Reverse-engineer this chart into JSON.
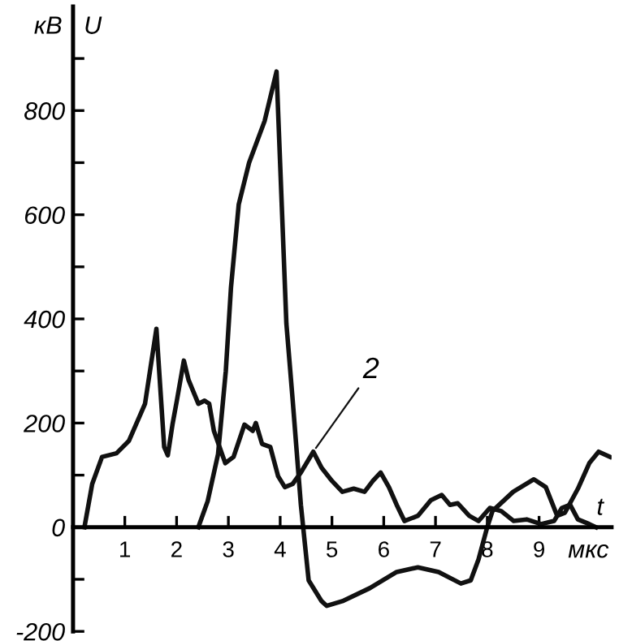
{
  "chart_data": {
    "type": "line",
    "xlabel": "t",
    "ylabel": "U",
    "annotations": [
      "кВ",
      "мкс",
      {
        "text": "2",
        "x": 4.64,
        "y": 145
      }
    ],
    "xlim": [
      0,
      10.4
    ],
    "ylim": [
      -200,
      1000
    ],
    "xticks": [
      1,
      2,
      3,
      4,
      5,
      6,
      7,
      8,
      9
    ],
    "yticks": [
      -200,
      {
        "value": -100,
        "label": null
      },
      0,
      {
        "value": 100,
        "label": null
      },
      200,
      {
        "value": 300,
        "label": null
      },
      400,
      {
        "value": 500,
        "label": null
      },
      600,
      {
        "value": 700,
        "label": null
      },
      800,
      {
        "value": 900,
        "label": null
      }
    ],
    "grid": false,
    "legend": false,
    "marker": "none",
    "line_style": "solid",
    "series": [
      {
        "color": "#111111",
        "x": [
          2.42,
          2.6,
          2.8,
          2.95,
          3.05,
          3.2,
          3.4,
          3.7,
          3.93,
          4.12,
          4.24,
          4.4,
          4.55,
          4.8,
          4.9,
          5.2,
          5.73,
          6.25,
          6.66,
          7.06,
          7.49,
          7.68,
          7.83,
          7.99,
          8.1,
          8.5,
          8.9,
          9.13,
          9.35,
          9.5,
          9.75,
          9.97,
          10.15,
          10.37
        ],
        "values": [
          0,
          50,
          140,
          300,
          460,
          620,
          700,
          780,
          875,
          391,
          246,
          43,
          -102,
          -142,
          -151,
          -142,
          -117,
          -86,
          -77,
          -86,
          -108,
          -102,
          -62,
          -3,
          31,
          68,
          92,
          77,
          22,
          28,
          74,
          123,
          145,
          135
        ]
      },
      {
        "color": "#111111",
        "x": [
          0.22,
          0.37,
          0.56,
          0.84,
          1.08,
          1.39,
          1.61,
          1.76,
          1.83,
          1.92,
          2.01,
          2.14,
          2.23,
          2.42,
          2.54,
          2.63,
          2.72,
          2.94,
          3.1,
          3.31,
          3.47,
          3.53,
          3.65,
          3.81,
          3.96,
          4.09,
          4.24,
          4.4,
          4.64,
          4.8,
          5.0,
          5.2,
          5.42,
          5.63,
          5.79,
          5.94,
          6.1,
          6.25,
          6.4,
          6.66,
          6.91,
          7.12,
          7.28,
          7.43,
          7.65,
          7.83,
          8.05,
          8.27,
          8.51,
          8.76,
          9.04,
          9.29,
          9.44,
          9.6,
          9.75,
          9.97,
          10.1
        ],
        "values": [
          0,
          83,
          135,
          142,
          166,
          237,
          381,
          154,
          138,
          197,
          246,
          320,
          283,
          237,
          243,
          237,
          185,
          123,
          135,
          197,
          185,
          200,
          160,
          154,
          98,
          77,
          83,
          105,
          145,
          114,
          89,
          68,
          74,
          68,
          89,
          105,
          77,
          43,
          12,
          22,
          52,
          62,
          43,
          46,
          22,
          12,
          37,
          31,
          12,
          15,
          6,
          12,
          37,
          43,
          15,
          6,
          0
        ]
      }
    ]
  }
}
